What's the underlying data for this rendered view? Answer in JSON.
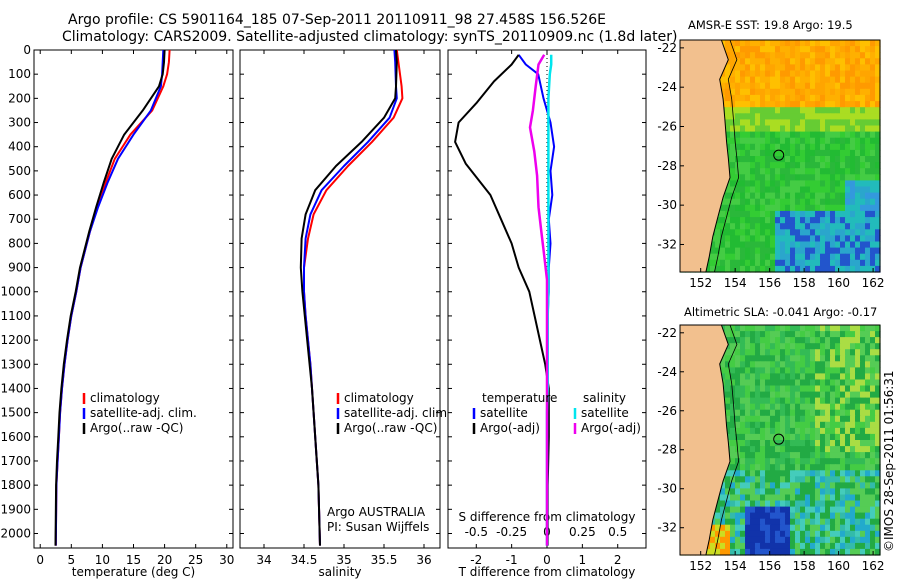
{
  "header": {
    "title_line1": "Argo profile: CS 5901164_185 07-Sep-2011 20110911_98 27.458S 156.526E",
    "title_line2": "Climatology: CARS2009. Satellite-adjusted climatology: synTS_20110909.nc (1.8d later)"
  },
  "timestamp": "©IMOS 28-Sep-2011 01:56:31",
  "colors": {
    "climatology": "#ff0000",
    "satellite": "#0000ff",
    "argo": "#000000",
    "salinity_satellite": "#00e5ee",
    "salinity_argo": "#ee00ee",
    "land": "#f2c08e"
  },
  "chart_data": [
    {
      "type": "line",
      "name": "temperature-panel",
      "xlabel": "temperature (deg C)",
      "ylabel": "",
      "xlim": [
        -1,
        31
      ],
      "ylim": [
        2060,
        0
      ],
      "xticks": [
        0,
        5,
        10,
        15,
        20,
        25,
        30
      ],
      "yticks": [
        0,
        100,
        200,
        300,
        400,
        500,
        600,
        700,
        800,
        900,
        1000,
        1100,
        1200,
        1300,
        1400,
        1500,
        1600,
        1700,
        1800,
        1900,
        2000
      ],
      "legend": [
        "climatology",
        "satellite-adj. clim.",
        "Argo(..raw -QC)"
      ],
      "legend_position": "lower-center",
      "series": [
        {
          "name": "climatology",
          "color": "#ff0000",
          "x": [
            20.8,
            20.7,
            20.4,
            19.8,
            18.0,
            14.5,
            12.0,
            10.5,
            9.2,
            8.0,
            6.5,
            5.8,
            5.0,
            4.4,
            3.9,
            3.5,
            3.2,
            3.0,
            2.8,
            2.6,
            2.5
          ],
          "y": [
            0,
            50,
            100,
            150,
            250,
            350,
            450,
            550,
            650,
            750,
            900,
            1000,
            1100,
            1200,
            1300,
            1400,
            1500,
            1600,
            1700,
            1800,
            2050
          ]
        },
        {
          "name": "satellite-adj. clim.",
          "color": "#0000ff",
          "x": [
            19.8,
            19.7,
            19.6,
            19.4,
            17.8,
            15.0,
            12.5,
            10.8,
            9.3,
            8.0,
            6.5,
            5.8,
            5.0,
            4.4,
            3.9,
            3.5,
            3.2,
            3.0,
            2.8,
            2.6,
            2.5
          ],
          "y": [
            0,
            50,
            100,
            150,
            250,
            350,
            450,
            550,
            650,
            750,
            900,
            1000,
            1100,
            1200,
            1300,
            1400,
            1500,
            1600,
            1700,
            1800,
            2050
          ]
        },
        {
          "name": "Argo(..raw -QC)",
          "color": "#000000",
          "x": [
            20.0,
            19.9,
            19.7,
            19.1,
            16.5,
            13.5,
            11.5,
            10.2,
            9.0,
            7.9,
            6.4,
            5.7,
            4.9,
            4.3,
            3.8,
            3.4,
            3.1,
            2.9,
            2.7,
            2.55,
            2.45
          ],
          "y": [
            0,
            50,
            100,
            150,
            250,
            350,
            450,
            550,
            650,
            750,
            900,
            1000,
            1100,
            1200,
            1300,
            1400,
            1500,
            1600,
            1700,
            1800,
            2050
          ]
        }
      ]
    },
    {
      "type": "line",
      "name": "salinity-panel",
      "xlabel": "salinity",
      "xlim": [
        33.7,
        36.2
      ],
      "ylim": [
        2060,
        0
      ],
      "xticks": [
        34,
        34.5,
        35,
        35.5,
        36
      ],
      "xticklabels": [
        "34",
        "34.5",
        "35",
        "35.5",
        "36"
      ],
      "legend": [
        "climatology",
        "satellite-adj. clim.",
        "Argo(..raw -QC)"
      ],
      "legend_position": "lower-center",
      "annotation": [
        "Argo AUSTRALIA",
        "PI: Susan Wijffels"
      ],
      "series": [
        {
          "name": "climatology",
          "color": "#ff0000",
          "x": [
            35.66,
            35.68,
            35.72,
            35.73,
            35.62,
            35.35,
            35.05,
            34.78,
            34.62,
            34.55,
            34.5,
            34.5,
            34.52,
            34.55,
            34.58,
            34.6,
            34.62,
            34.64,
            34.66,
            34.68,
            34.7
          ],
          "y": [
            0,
            50,
            150,
            200,
            280,
            380,
            480,
            580,
            680,
            780,
            900,
            1000,
            1100,
            1200,
            1300,
            1400,
            1500,
            1600,
            1700,
            1800,
            2050
          ]
        },
        {
          "name": "satellite-adj. clim.",
          "color": "#0000ff",
          "x": [
            35.63,
            35.64,
            35.65,
            35.66,
            35.57,
            35.3,
            35.0,
            34.72,
            34.58,
            34.52,
            34.5,
            34.5,
            34.52,
            34.55,
            34.58,
            34.6,
            34.62,
            34.64,
            34.66,
            34.68,
            34.7
          ],
          "y": [
            0,
            50,
            150,
            200,
            280,
            380,
            480,
            580,
            680,
            780,
            900,
            1000,
            1100,
            1200,
            1300,
            1400,
            1500,
            1600,
            1700,
            1800,
            2050
          ]
        },
        {
          "name": "Argo(..raw -QC)",
          "color": "#000000",
          "x": [
            35.65,
            35.66,
            35.65,
            35.64,
            35.5,
            35.22,
            34.9,
            34.64,
            34.52,
            34.47,
            34.46,
            34.48,
            34.51,
            34.54,
            34.57,
            34.6,
            34.62,
            34.64,
            34.66,
            34.68,
            34.7
          ],
          "y": [
            0,
            50,
            150,
            200,
            280,
            380,
            480,
            580,
            680,
            780,
            900,
            1000,
            1100,
            1200,
            1300,
            1400,
            1500,
            1600,
            1700,
            1800,
            2050
          ]
        }
      ]
    },
    {
      "type": "line",
      "name": "difference-panel",
      "xlabel": "T difference from climatology",
      "top_label": "S difference from climatology",
      "xlim": [
        -2.8,
        2.8
      ],
      "ylim": [
        2060,
        0
      ],
      "xticks": [
        -2,
        -1,
        0,
        1,
        2
      ],
      "top_ticks": [
        -0.5,
        -0.25,
        0,
        0.25,
        0.5
      ],
      "top_ticklabels": [
        "-0.5",
        "-0.25",
        "0",
        "0.25",
        "0.5"
      ],
      "legend_temperature": {
        "heading": "temperature",
        "items": [
          "satellite",
          "Argo(-adj)"
        ]
      },
      "legend_salinity": {
        "heading": "salinity",
        "items": [
          "satellite",
          "Argo(-adj)"
        ]
      },
      "series": [
        {
          "name": "temperature satellite",
          "color": "#0000ff",
          "x": [
            -0.8,
            -0.6,
            -0.25,
            -0.1,
            0.1,
            0.2,
            0.1,
            0.15,
            0.05,
            0.1,
            0.05,
            0.05,
            0.02,
            0.02,
            0.02,
            0.02,
            0.01,
            0.01,
            0.0,
            0.0
          ],
          "y": [
            20,
            60,
            100,
            200,
            300,
            400,
            500,
            600,
            700,
            800,
            900,
            1000,
            1100,
            1200,
            1300,
            1400,
            1500,
            1600,
            1800,
            2050
          ]
        },
        {
          "name": "temperature Argo(-adj)",
          "color": "#000000",
          "x": [
            -0.8,
            -1.0,
            -1.5,
            -2.0,
            -2.5,
            -2.6,
            -2.3,
            -1.6,
            -1.3,
            -1.0,
            -0.8,
            -0.5,
            -0.35,
            -0.2,
            -0.05,
            0.05,
            0.05,
            0.05,
            0.02,
            0.02
          ],
          "y": [
            20,
            60,
            130,
            220,
            300,
            380,
            470,
            600,
            700,
            800,
            900,
            1000,
            1100,
            1200,
            1300,
            1400,
            1500,
            1600,
            1800,
            2050
          ]
        },
        {
          "name": "salinity satellite",
          "color": "#00e5ee",
          "x": [
            0.03,
            0.03,
            0.02,
            0.01,
            0.01,
            0.01,
            0.01,
            0.01,
            0.01,
            0.01,
            0.01,
            0.01,
            0.005,
            0.005,
            0.005,
            0.005,
            0.0,
            0.0,
            0.0
          ],
          "y": [
            20,
            60,
            100,
            200,
            300,
            400,
            500,
            600,
            700,
            800,
            900,
            1000,
            1100,
            1200,
            1300,
            1400,
            1500,
            1800,
            2050
          ]
        },
        {
          "name": "salinity Argo(-adj)",
          "color": "#ee00ee",
          "x": [
            -0.02,
            -0.06,
            -0.08,
            -0.1,
            -0.12,
            -0.09,
            -0.07,
            -0.06,
            -0.04,
            -0.02,
            0.0,
            0.0,
            0.0,
            0.0,
            0.0
          ],
          "y": [
            20,
            60,
            150,
            250,
            320,
            420,
            520,
            650,
            750,
            850,
            950,
            1050,
            1200,
            1400,
            2050
          ]
        }
      ]
    }
  ],
  "maps": {
    "sst": {
      "title": "AMSR-E SST: 19.8 Argo: 19.5",
      "xticks": [
        152,
        154,
        156,
        158,
        160,
        162
      ],
      "yticks": [
        -22,
        -24,
        -26,
        -28,
        -30,
        -32
      ],
      "marker": [
        156.526,
        -27.458
      ]
    },
    "sla": {
      "title": "Altimetric SLA: -0.041 Argo: -0.17",
      "xticks": [
        152,
        154,
        156,
        158,
        160,
        162
      ],
      "yticks": [
        -22,
        -24,
        -26,
        -28,
        -30,
        -32
      ],
      "marker": [
        156.526,
        -27.458
      ]
    }
  }
}
